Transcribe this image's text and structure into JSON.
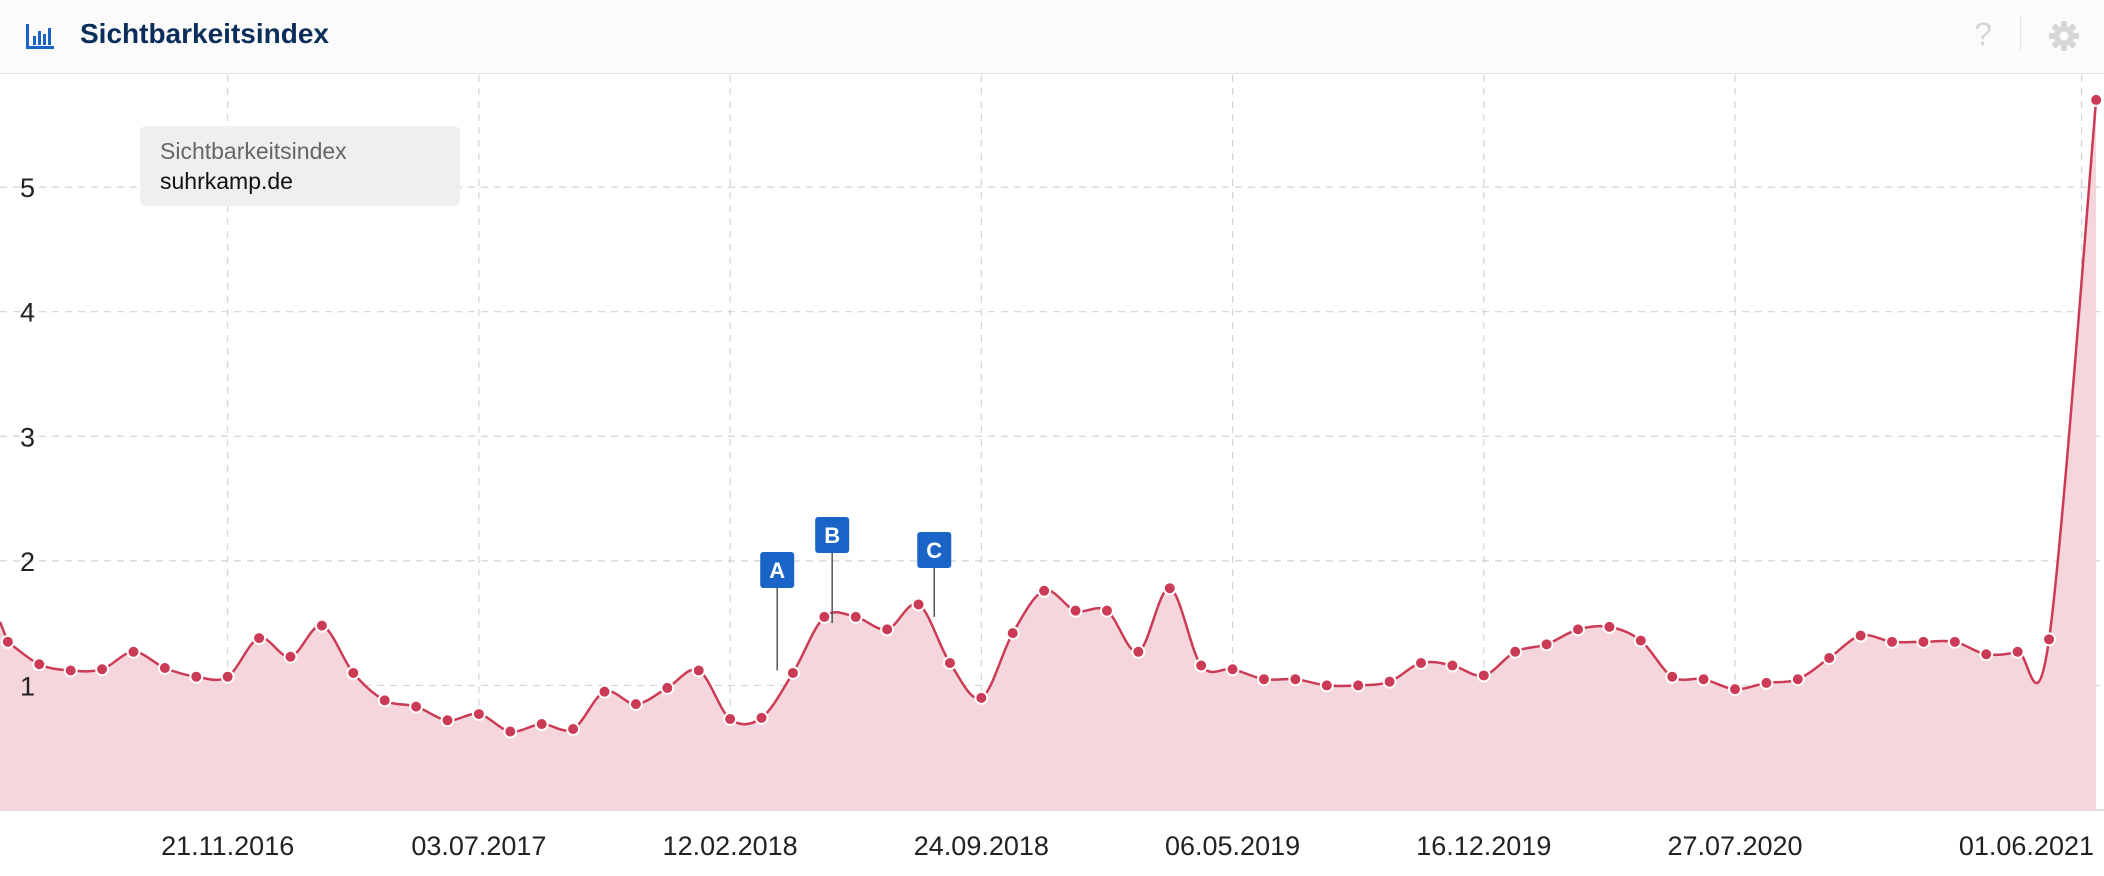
{
  "header": {
    "title": "Sichtbarkeitsindex",
    "icon": "bar-chart-icon",
    "help_label": "?",
    "help_icon": "help-icon",
    "settings_icon": "gear-icon"
  },
  "legend": {
    "title": "Sichtbarkeitsindex",
    "domain": "suhrkamp.de"
  },
  "colors": {
    "series_line": "#cc3b55",
    "series_fill": "#f5d6dc",
    "marker_bg": "#1a64c8",
    "header_title": "#0b2d5a",
    "icon_blue": "#1a64c8"
  },
  "chart_data": {
    "type": "area",
    "title": "Sichtbarkeitsindex",
    "xlabel": "",
    "ylabel": "",
    "x_ticks": [
      "21.11.2016",
      "03.07.2017",
      "12.02.2018",
      "24.09.2018",
      "06.05.2019",
      "16.12.2019",
      "27.07.2020",
      "01.06.2021"
    ],
    "x_tick_dates": [
      "2016-11-21",
      "2017-07-03",
      "2018-02-12",
      "2018-09-24",
      "2019-05-06",
      "2019-12-16",
      "2020-07-27",
      "2021-06-01"
    ],
    "x_range": [
      "2016-05-02",
      "2021-06-21"
    ],
    "ylim": [
      0,
      5.9
    ],
    "y_ticks": [
      1,
      2,
      3,
      4,
      5
    ],
    "grid": true,
    "legend_position": "top-left",
    "series": [
      {
        "name": "suhrkamp.de",
        "points": [
          [
            "2016-05-09",
            1.35
          ],
          [
            "2016-06-06",
            1.17
          ],
          [
            "2016-07-04",
            1.12
          ],
          [
            "2016-08-01",
            1.13
          ],
          [
            "2016-08-29",
            1.27
          ],
          [
            "2016-09-26",
            1.14
          ],
          [
            "2016-10-24",
            1.07
          ],
          [
            "2016-11-21",
            1.07
          ],
          [
            "2016-12-19",
            1.38
          ],
          [
            "2017-01-16",
            1.23
          ],
          [
            "2017-02-13",
            1.48
          ],
          [
            "2017-03-13",
            1.1
          ],
          [
            "2017-04-10",
            0.88
          ],
          [
            "2017-05-08",
            0.83
          ],
          [
            "2017-06-05",
            0.72
          ],
          [
            "2017-07-03",
            0.77
          ],
          [
            "2017-07-31",
            0.63
          ],
          [
            "2017-08-28",
            0.69
          ],
          [
            "2017-09-25",
            0.65
          ],
          [
            "2017-10-23",
            0.95
          ],
          [
            "2017-11-20",
            0.85
          ],
          [
            "2017-12-18",
            0.98
          ],
          [
            "2018-01-15",
            1.12
          ],
          [
            "2018-02-12",
            0.73
          ],
          [
            "2018-03-12",
            0.74
          ],
          [
            "2018-04-09",
            1.1
          ],
          [
            "2018-05-07",
            1.55
          ],
          [
            "2018-06-04",
            1.55
          ],
          [
            "2018-07-02",
            1.45
          ],
          [
            "2018-07-30",
            1.65
          ],
          [
            "2018-08-27",
            1.18
          ],
          [
            "2018-09-24",
            0.9
          ],
          [
            "2018-10-22",
            1.42
          ],
          [
            "2018-11-19",
            1.76
          ],
          [
            "2018-12-17",
            1.6
          ],
          [
            "2019-01-14",
            1.6
          ],
          [
            "2019-02-11",
            1.27
          ],
          [
            "2019-03-11",
            1.78
          ],
          [
            "2019-04-08",
            1.16
          ],
          [
            "2019-05-06",
            1.13
          ],
          [
            "2019-06-03",
            1.05
          ],
          [
            "2019-07-01",
            1.05
          ],
          [
            "2019-07-29",
            1.0
          ],
          [
            "2019-08-26",
            1.0
          ],
          [
            "2019-09-23",
            1.03
          ],
          [
            "2019-10-21",
            1.18
          ],
          [
            "2019-11-18",
            1.16
          ],
          [
            "2019-12-16",
            1.08
          ],
          [
            "2020-01-13",
            1.27
          ],
          [
            "2020-02-10",
            1.33
          ],
          [
            "2020-03-09",
            1.45
          ],
          [
            "2020-04-06",
            1.47
          ],
          [
            "2020-05-04",
            1.36
          ],
          [
            "2020-06-01",
            1.07
          ],
          [
            "2020-06-29",
            1.05
          ],
          [
            "2020-07-27",
            0.97
          ],
          [
            "2020-08-24",
            1.02
          ],
          [
            "2020-09-21",
            1.05
          ],
          [
            "2020-10-19",
            1.22
          ],
          [
            "2020-11-16",
            1.4
          ],
          [
            "2020-12-14",
            1.35
          ],
          [
            "2021-01-11",
            1.35
          ],
          [
            "2021-02-08",
            1.35
          ],
          [
            "2021-03-08",
            1.25
          ],
          [
            "2021-04-05",
            1.27
          ],
          [
            "2021-05-03",
            1.37
          ],
          [
            "2021-06-14",
            5.7
          ]
        ]
      }
    ],
    "events": [
      {
        "label": "A",
        "date": "2018-03-26",
        "value": 1.12
      },
      {
        "label": "B",
        "date": "2018-05-14",
        "value": 1.5
      },
      {
        "label": "C",
        "date": "2018-08-13",
        "value": 1.55
      }
    ]
  }
}
